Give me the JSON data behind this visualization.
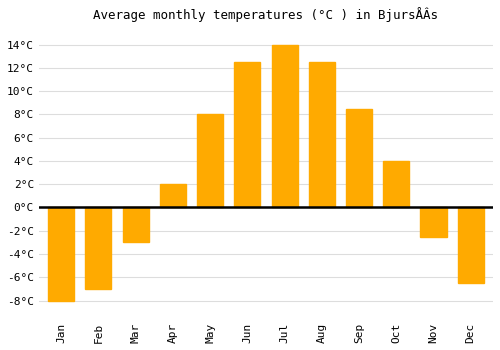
{
  "title": "Average monthly temperatures (°C ) in BjursÅÂs",
  "months": [
    "Jan",
    "Feb",
    "Mar",
    "Apr",
    "May",
    "Jun",
    "Jul",
    "Aug",
    "Sep",
    "Oct",
    "Nov",
    "Dec"
  ],
  "temperatures": [
    -8,
    -7,
    -3,
    2,
    8,
    12.5,
    14,
    12.5,
    8.5,
    4,
    -2.5,
    -6.5
  ],
  "bar_color": "#FFAA00",
  "bar_edge_color": "#FFAA00",
  "background_color": "#FFFFFF",
  "grid_color": "#DDDDDD",
  "zero_line_color": "#000000",
  "ylim": [
    -9.5,
    15.5
  ],
  "yticks": [
    -8,
    -6,
    -4,
    -2,
    0,
    2,
    4,
    6,
    8,
    10,
    12,
    14
  ],
  "title_fontsize": 9,
  "tick_fontsize": 8,
  "font_family": "monospace"
}
